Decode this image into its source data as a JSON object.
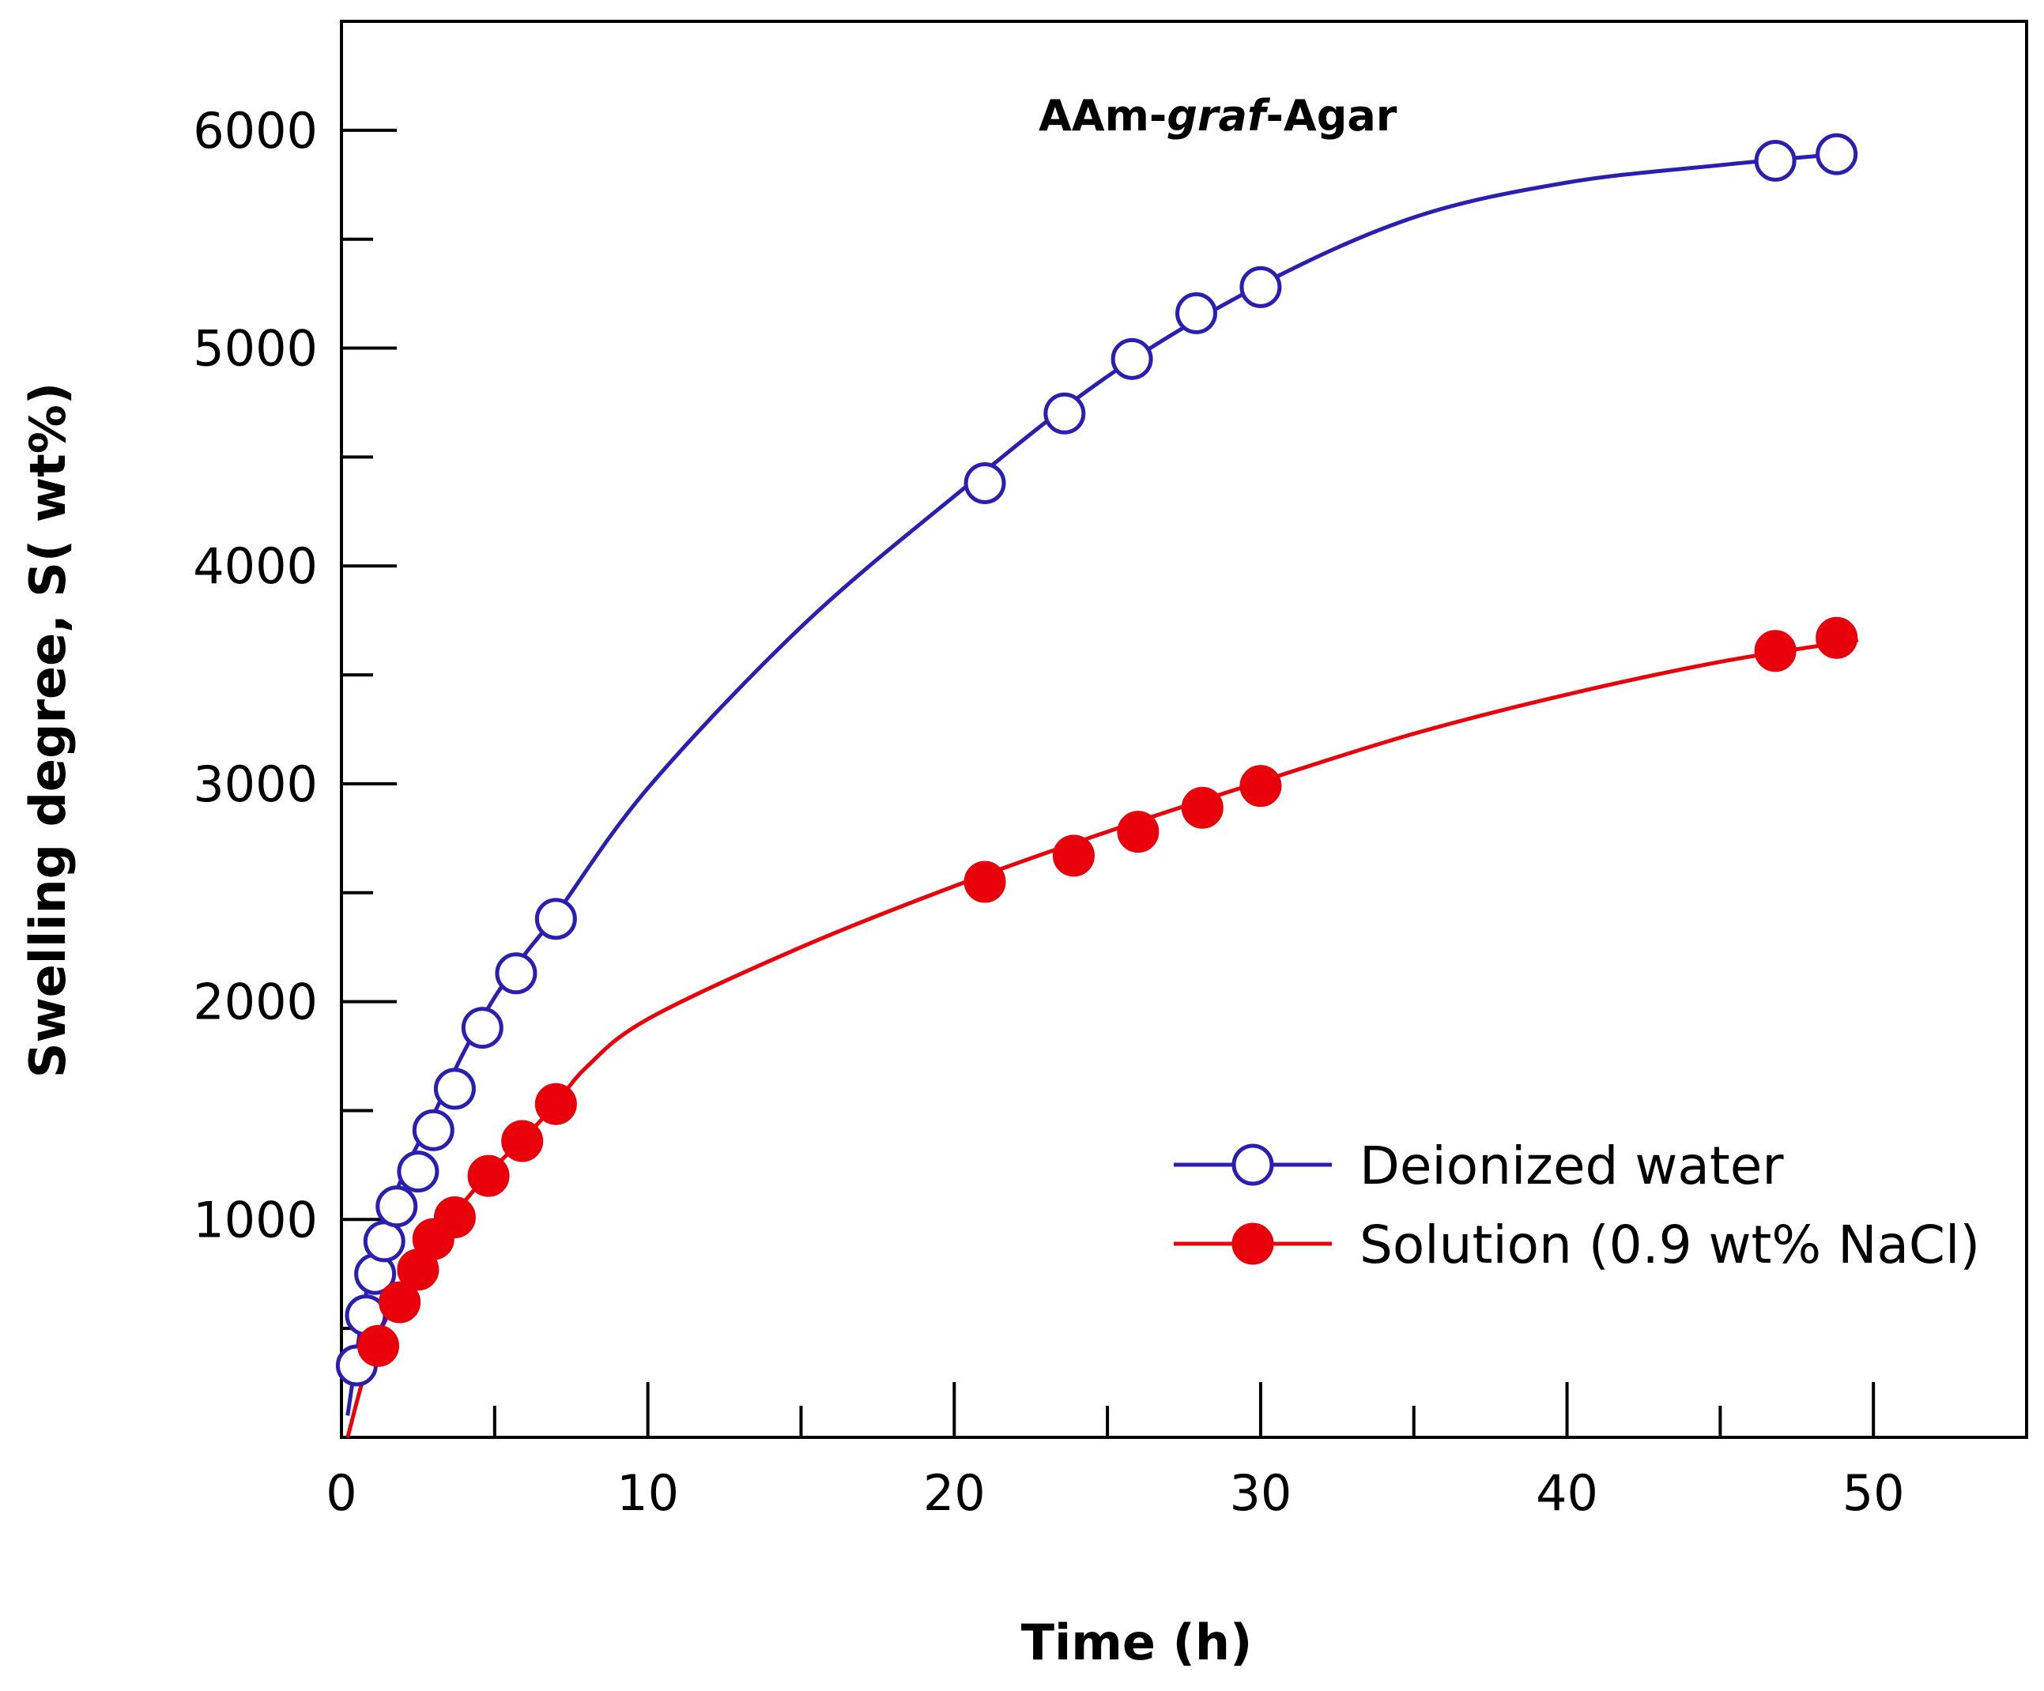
{
  "chart_data": {
    "type": "line",
    "title": "",
    "annotation": {
      "prefix": "AAm-",
      "italic": "graf",
      "suffix": "-Agar"
    },
    "xlabel": "Time (h)",
    "ylabel": "Swelling degree, S( wt%)",
    "xlim": [
      0,
      55
    ],
    "ylim": [
      0,
      6500
    ],
    "xticks": [
      0,
      10,
      20,
      30,
      40,
      50
    ],
    "yticks": [
      1000,
      2000,
      3000,
      4000,
      5000,
      6000
    ],
    "legend_position": "bottom-right",
    "series": [
      {
        "name": "Deionized water",
        "marker": "open-circle",
        "color": "#2a1fb0",
        "x": [
          0.5,
          0.8,
          1.1,
          1.4,
          1.8,
          2.5,
          3.0,
          3.7,
          4.6,
          5.7,
          7.0,
          21.0,
          23.6,
          25.8,
          27.9,
          30.0,
          46.8,
          48.8
        ],
        "y": [
          330,
          560,
          750,
          900,
          1060,
          1220,
          1410,
          1600,
          1880,
          2130,
          2380,
          4380,
          4700,
          4950,
          5160,
          5280,
          5860,
          5890
        ],
        "fit_x": [
          0.2,
          1,
          2,
          3,
          4,
          5,
          6,
          7,
          10,
          15,
          20,
          25,
          30,
          35,
          40,
          45,
          48.8
        ],
        "fit_y": [
          100,
          800,
          1200,
          1480,
          1770,
          2020,
          2220,
          2400,
          2980,
          3720,
          4320,
          4870,
          5290,
          5600,
          5760,
          5840,
          5890
        ]
      },
      {
        "name": "Solution (0.9 wt% NaCl)",
        "marker": "filled-circle",
        "color": "#e8000b",
        "x": [
          1.2,
          1.9,
          2.5,
          3.0,
          3.7,
          4.8,
          5.9,
          7.0,
          21.0,
          23.9,
          26.0,
          28.1,
          30.0,
          46.8,
          48.8
        ],
        "y": [
          420,
          620,
          770,
          910,
          1010,
          1200,
          1360,
          1530,
          2550,
          2670,
          2780,
          2890,
          2990,
          3610,
          3670
        ],
        "fit_x": [
          0.2,
          1,
          2,
          3,
          4,
          5,
          6,
          7,
          8,
          10,
          15,
          20,
          25,
          30,
          35,
          40,
          45,
          49.5
        ],
        "fit_y": [
          0,
          400,
          680,
          900,
          1080,
          1240,
          1380,
          1530,
          1700,
          1920,
          2250,
          2530,
          2780,
          3010,
          3230,
          3410,
          3560,
          3660
        ]
      }
    ]
  }
}
